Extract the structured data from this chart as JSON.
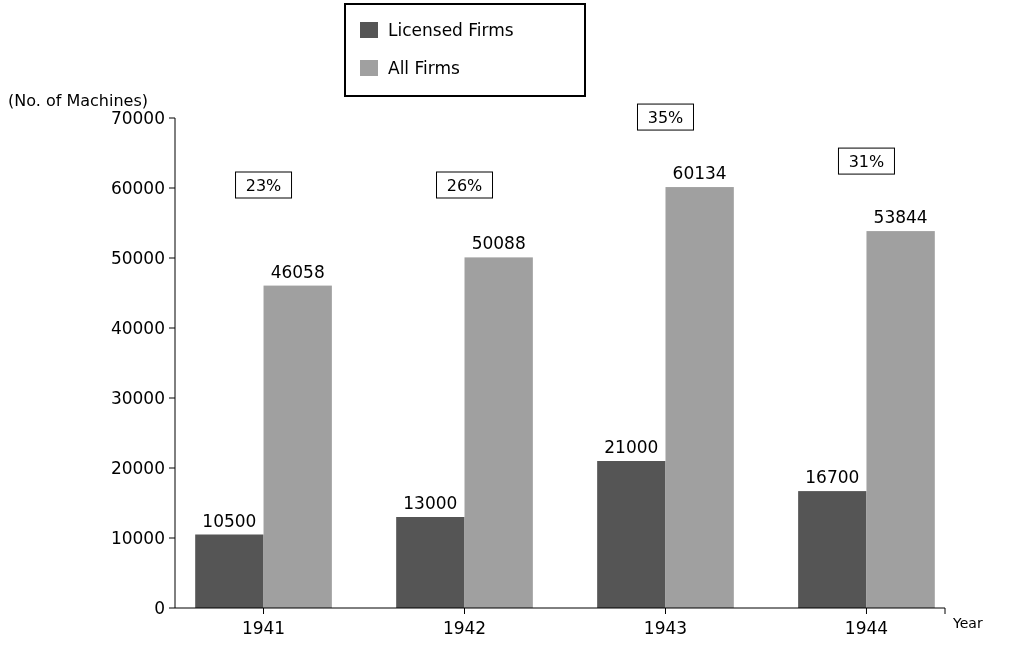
{
  "chart_data": {
    "type": "bar",
    "ylabel": "(No. of Machines)",
    "xlabel": "Year",
    "categories": [
      "1941",
      "1942",
      "1943",
      "1944"
    ],
    "series": [
      {
        "name": "Licensed Firms",
        "color": "#555555",
        "values": [
          10500,
          13000,
          21000,
          16700
        ]
      },
      {
        "name": "All Firms",
        "color": "#a0a0a0",
        "values": [
          46058,
          50088,
          60134,
          53844
        ]
      }
    ],
    "ylim": [
      0,
      70000
    ],
    "yticks": [
      0,
      10000,
      20000,
      30000,
      40000,
      50000,
      60000,
      70000
    ],
    "data_labels": true,
    "legend": "top",
    "grid": false,
    "annotations": [
      "23%",
      "26%",
      "35%",
      "31%"
    ]
  }
}
